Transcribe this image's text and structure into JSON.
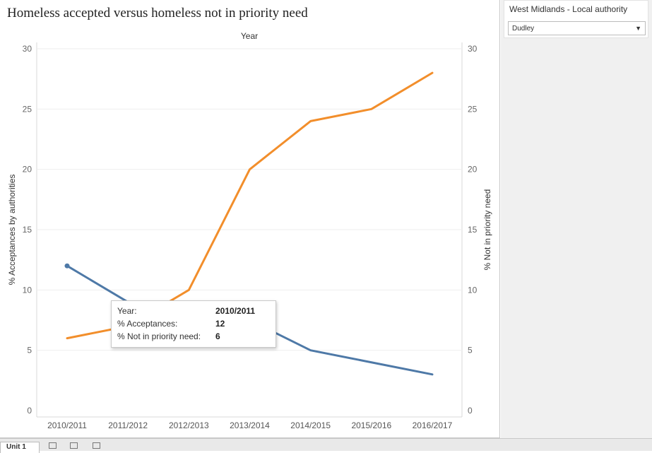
{
  "dashboard": {
    "title": "Homeless accepted versus homeless not in priority need"
  },
  "filter": {
    "title": "West Midlands - Local authority",
    "selected": "Dudley"
  },
  "tooltip": {
    "rows": [
      {
        "label": "Year:",
        "value": "2010/2011"
      },
      {
        "label": "% Acceptances:",
        "value": "12"
      },
      {
        "label": "% Not in priority need:",
        "value": "6"
      }
    ]
  },
  "tabs": {
    "active_label": "Unit 1"
  },
  "colors": {
    "acceptances": "#4e79a7",
    "not_priority": "#f28e2b"
  },
  "chart_data": {
    "type": "line",
    "title": "",
    "xlabel": "Year",
    "ylabel": "% Acceptances by authorities",
    "ylabel_right": "% Not in priority need",
    "ylim": [
      0,
      30
    ],
    "yticks": [
      0,
      5,
      10,
      15,
      20,
      25,
      30
    ],
    "grid": true,
    "categories": [
      "2010/2011",
      "2011/2012",
      "2012/2013",
      "2013/2014",
      "2014/2015",
      "2015/2016",
      "2016/2017"
    ],
    "series": [
      {
        "name": "% Acceptances",
        "axis": "left",
        "color": "#4e79a7",
        "values": [
          12,
          9,
          8.5,
          7.5,
          5,
          4,
          3
        ]
      },
      {
        "name": "% Not in priority need",
        "axis": "right",
        "color": "#f28e2b",
        "values": [
          6,
          7,
          10,
          20,
          24,
          25,
          28
        ]
      }
    ]
  }
}
